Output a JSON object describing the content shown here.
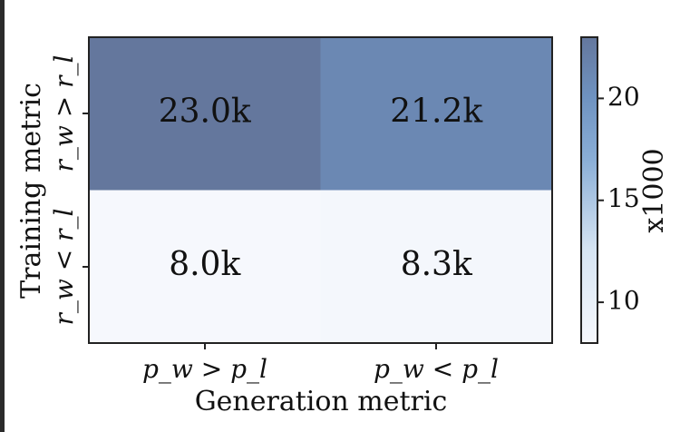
{
  "chart_data": {
    "type": "heatmap",
    "xlabel": "Generation metric",
    "ylabel": "Training metric",
    "x_categories": [
      "p_w > p_l",
      "p_w < p_l"
    ],
    "y_categories": [
      "r_w > r_l",
      "r_w < r_l"
    ],
    "values": [
      [
        23.0,
        21.2
      ],
      [
        8.0,
        8.3
      ]
    ],
    "cell_labels": [
      [
        "23.0k",
        "21.2k"
      ],
      [
        "8.0k",
        "8.3k"
      ]
    ],
    "colorbar": {
      "label": "x1000",
      "ticks": [
        20,
        15,
        10
      ],
      "range": [
        8.0,
        23.0
      ],
      "low_color": "#f6f8fd",
      "high_color": "#64779d",
      "mid_color": "#7a9ccc"
    }
  }
}
